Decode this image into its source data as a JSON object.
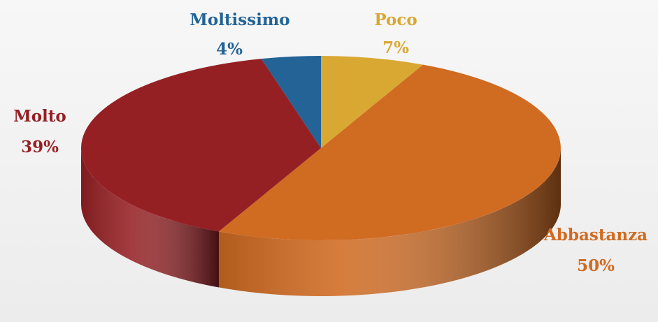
{
  "chart_data": {
    "type": "pie",
    "categories": [
      "Poco",
      "Abbastanza",
      "Molto",
      "Moltissimo"
    ],
    "values": [
      7,
      50,
      39,
      4
    ],
    "value_labels": [
      "7%",
      "50%",
      "39%",
      "4%"
    ],
    "colors": [
      "#d9a832",
      "#d06b22",
      "#952024",
      "#236396"
    ]
  }
}
